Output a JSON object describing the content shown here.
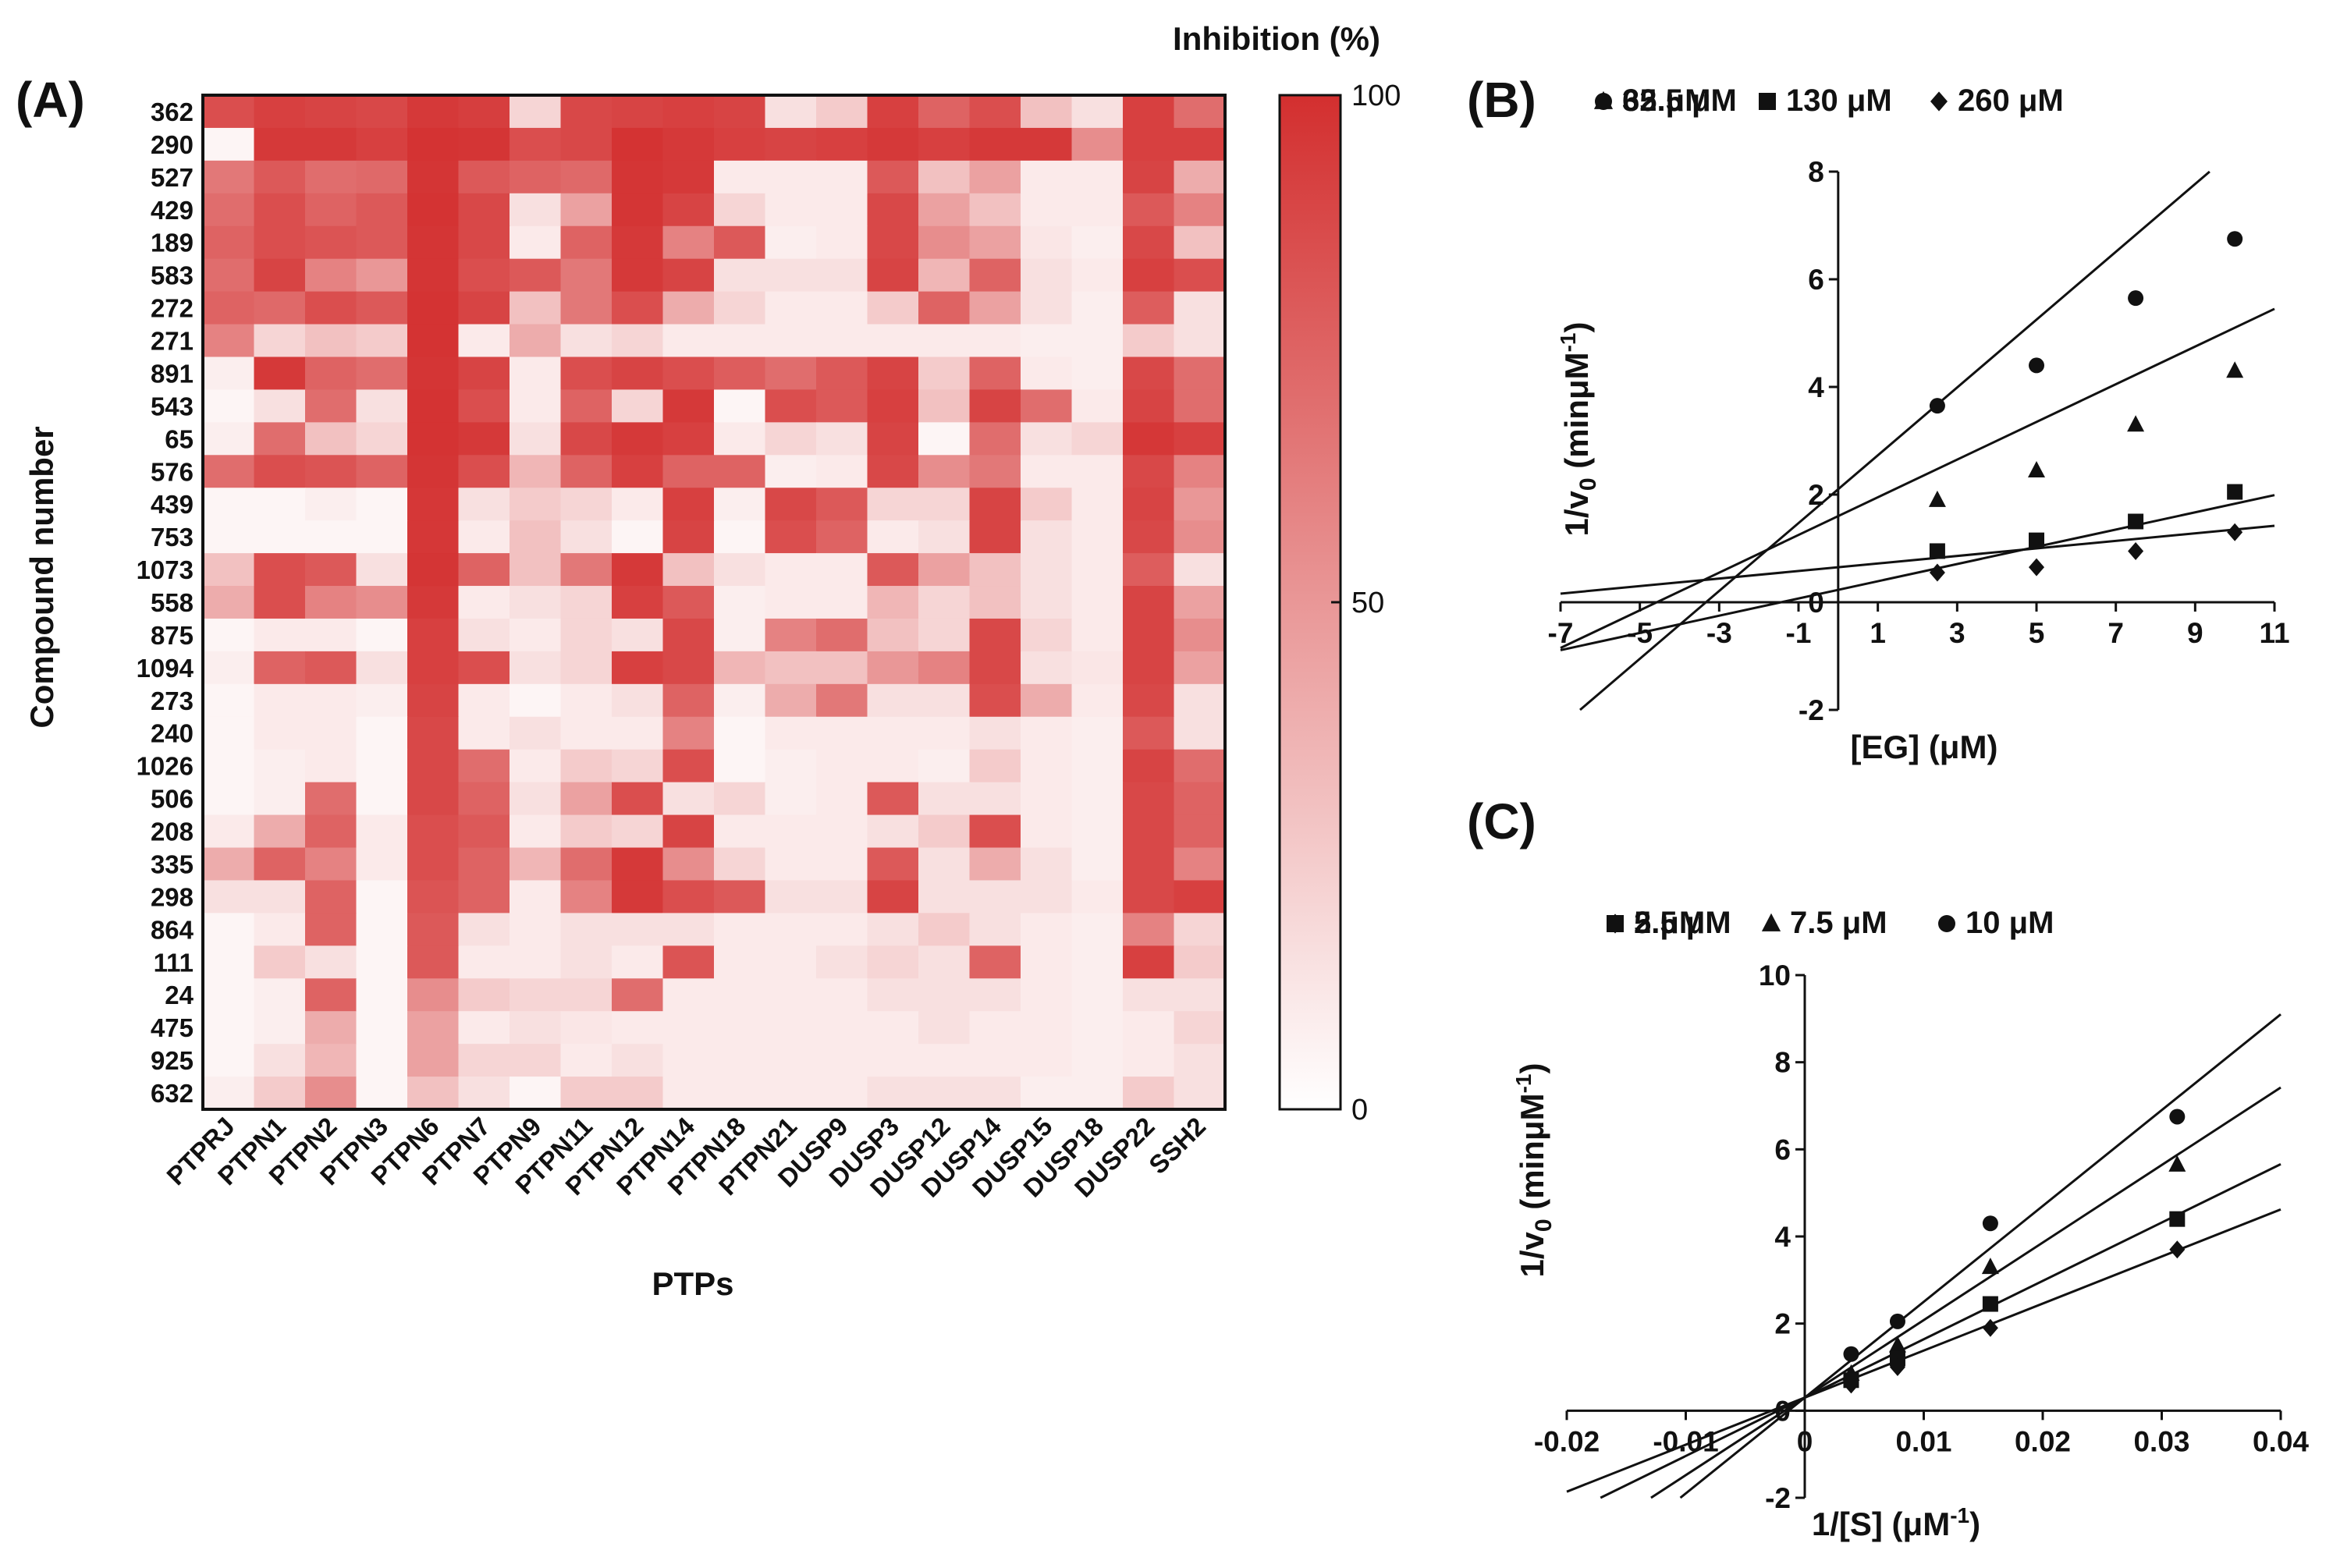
{
  "chart_data": [
    {
      "panel": "(A)",
      "type": "heatmap",
      "xlabel": "PTPs",
      "ylabel": "Compound number",
      "colorbar_title": "Inhibition (%)",
      "colorbar_ticks": [
        "100",
        "50",
        "0"
      ],
      "color_low": "#ffffff",
      "color_high": "#d32f2f",
      "columns": [
        "PTPRJ",
        "PTPN1",
        "PTPN2",
        "PTPN3",
        "PTPN6",
        "PTPN7",
        "PTPN9",
        "PTPN11",
        "PTPN12",
        "PTPN14",
        "PTPN18",
        "PTPN21",
        "DUSP9",
        "DUSP3",
        "DUSP12",
        "DUSP14",
        "DUSP15",
        "DUSP18",
        "DUSP22",
        "SSH2"
      ],
      "rows": [
        "362",
        "290",
        "527",
        "429",
        "189",
        "583",
        "272",
        "271",
        "891",
        "543",
        "65",
        "576",
        "439",
        "753",
        "1073",
        "558",
        "875",
        "1094",
        "273",
        "240",
        "1026",
        "506",
        "208",
        "335",
        "298",
        "864",
        "111",
        "24",
        "475",
        "925",
        "632"
      ],
      "values": [
        [
          85,
          92,
          90,
          88,
          95,
          93,
          20,
          88,
          90,
          92,
          90,
          15,
          25,
          92,
          75,
          85,
          30,
          15,
          92,
          70
        ],
        [
          5,
          95,
          95,
          92,
          98,
          97,
          85,
          88,
          98,
          95,
          92,
          90,
          92,
          95,
          92,
          95,
          95,
          55,
          92,
          92
        ],
        [
          65,
          80,
          70,
          72,
          97,
          80,
          75,
          72,
          97,
          95,
          10,
          10,
          10,
          80,
          30,
          45,
          10,
          10,
          90,
          40
        ],
        [
          70,
          85,
          75,
          80,
          98,
          88,
          15,
          45,
          97,
          90,
          20,
          10,
          10,
          88,
          45,
          30,
          10,
          10,
          80,
          60
        ],
        [
          75,
          85,
          82,
          80,
          97,
          88,
          10,
          75,
          95,
          60,
          80,
          8,
          10,
          88,
          55,
          45,
          12,
          8,
          88,
          30
        ],
        [
          70,
          90,
          60,
          50,
          97,
          85,
          80,
          65,
          95,
          90,
          15,
          15,
          15,
          90,
          35,
          75,
          15,
          10,
          92,
          85
        ],
        [
          75,
          72,
          85,
          80,
          98,
          90,
          30,
          65,
          85,
          40,
          20,
          10,
          10,
          25,
          75,
          45,
          15,
          8,
          78,
          15
        ],
        [
          60,
          20,
          30,
          25,
          98,
          10,
          40,
          15,
          20,
          10,
          10,
          10,
          10,
          10,
          10,
          10,
          8,
          8,
          25,
          15
        ],
        [
          8,
          95,
          75,
          70,
          97,
          90,
          10,
          85,
          90,
          85,
          78,
          70,
          80,
          90,
          25,
          75,
          10,
          8,
          88,
          70
        ],
        [
          5,
          15,
          70,
          15,
          98,
          85,
          10,
          75,
          20,
          95,
          5,
          85,
          80,
          92,
          30,
          90,
          70,
          10,
          90,
          70
        ],
        [
          8,
          70,
          30,
          20,
          98,
          95,
          15,
          88,
          95,
          92,
          10,
          20,
          15,
          90,
          5,
          70,
          15,
          20,
          96,
          92
        ],
        [
          70,
          85,
          82,
          75,
          97,
          85,
          35,
          75,
          92,
          75,
          75,
          8,
          10,
          88,
          55,
          65,
          10,
          10,
          88,
          60
        ],
        [
          5,
          5,
          8,
          5,
          96,
          15,
          25,
          20,
          10,
          92,
          8,
          88,
          80,
          20,
          20,
          90,
          25,
          10,
          90,
          50
        ],
        [
          5,
          5,
          5,
          5,
          96,
          10,
          30,
          15,
          5,
          90,
          5,
          85,
          75,
          10,
          15,
          90,
          15,
          10,
          88,
          55
        ],
        [
          30,
          85,
          80,
          15,
          97,
          75,
          30,
          65,
          95,
          30,
          15,
          10,
          10,
          80,
          45,
          30,
          15,
          10,
          78,
          15
        ],
        [
          40,
          85,
          60,
          55,
          95,
          10,
          15,
          20,
          92,
          80,
          8,
          10,
          10,
          35,
          20,
          30,
          15,
          10,
          90,
          45
        ],
        [
          5,
          10,
          10,
          5,
          92,
          15,
          10,
          20,
          15,
          88,
          8,
          60,
          70,
          30,
          20,
          88,
          20,
          10,
          90,
          55
        ],
        [
          8,
          75,
          80,
          15,
          92,
          85,
          15,
          20,
          92,
          88,
          35,
          30,
          30,
          50,
          60,
          88,
          15,
          12,
          90,
          45
        ],
        [
          5,
          10,
          10,
          8,
          90,
          10,
          5,
          10,
          15,
          75,
          8,
          40,
          65,
          15,
          15,
          85,
          40,
          10,
          88,
          15
        ],
        [
          5,
          10,
          10,
          5,
          88,
          10,
          15,
          10,
          10,
          60,
          5,
          10,
          10,
          10,
          10,
          15,
          10,
          8,
          80,
          15
        ],
        [
          5,
          8,
          10,
          5,
          88,
          70,
          10,
          25,
          20,
          85,
          5,
          8,
          10,
          10,
          8,
          25,
          10,
          8,
          90,
          70
        ],
        [
          5,
          8,
          70,
          5,
          88,
          75,
          15,
          45,
          85,
          15,
          20,
          8,
          10,
          80,
          15,
          15,
          10,
          8,
          88,
          75
        ],
        [
          10,
          40,
          75,
          10,
          85,
          80,
          10,
          25,
          20,
          90,
          10,
          10,
          10,
          15,
          25,
          85,
          10,
          8,
          88,
          75
        ],
        [
          40,
          75,
          60,
          10,
          85,
          75,
          35,
          70,
          95,
          55,
          20,
          10,
          10,
          80,
          15,
          40,
          15,
          8,
          88,
          60
        ],
        [
          15,
          15,
          75,
          5,
          82,
          75,
          10,
          60,
          95,
          85,
          80,
          15,
          15,
          90,
          15,
          15,
          15,
          10,
          88,
          92
        ],
        [
          5,
          10,
          75,
          5,
          80,
          15,
          10,
          15,
          15,
          15,
          10,
          10,
          10,
          15,
          25,
          15,
          10,
          8,
          60,
          20
        ],
        [
          5,
          25,
          15,
          5,
          80,
          10,
          10,
          15,
          10,
          82,
          10,
          10,
          15,
          20,
          15,
          75,
          10,
          8,
          92,
          25
        ],
        [
          5,
          8,
          75,
          5,
          55,
          25,
          20,
          20,
          70,
          10,
          10,
          10,
          10,
          15,
          15,
          15,
          10,
          8,
          15,
          15
        ],
        [
          5,
          8,
          40,
          5,
          45,
          10,
          15,
          12,
          10,
          10,
          10,
          10,
          10,
          10,
          15,
          10,
          10,
          8,
          10,
          20
        ],
        [
          5,
          15,
          35,
          5,
          45,
          20,
          20,
          10,
          15,
          10,
          10,
          10,
          10,
          10,
          10,
          10,
          10,
          8,
          10,
          15
        ],
        [
          8,
          25,
          55,
          5,
          30,
          15,
          5,
          25,
          25,
          10,
          10,
          10,
          10,
          15,
          15,
          15,
          8,
          8,
          25,
          15
        ]
      ]
    },
    {
      "panel": "(B)",
      "type": "scatter",
      "xlabel": "[EG] (μM)",
      "ylabel_main": "1/v",
      "ylabel_sub": "0",
      "ylabel_rest": " (minμM",
      "ylabel_sup": "-1",
      "ylabel_end": ")",
      "xlim": [
        -7,
        11
      ],
      "ylim": [
        -2,
        8
      ],
      "xticks": [
        -7,
        -5,
        -3,
        -1,
        1,
        3,
        5,
        7,
        9,
        11
      ],
      "yticks": [
        -2,
        0,
        2,
        4,
        6,
        8
      ],
      "series": [
        {
          "name": "260 μM",
          "marker": "diamond",
          "x": [
            2.5,
            5,
            7.5,
            10
          ],
          "y": [
            0.55,
            0.65,
            0.95,
            1.3
          ],
          "fit": {
            "slope": 0.07,
            "intercept": 0.65
          }
        },
        {
          "name": "130 μM",
          "marker": "square",
          "x": [
            2.5,
            5,
            7.5,
            10
          ],
          "y": [
            0.95,
            1.15,
            1.5,
            2.05
          ],
          "fit": {
            "slope": 0.16,
            "intercept": 0.23
          }
        },
        {
          "name": "65 μM",
          "marker": "triangle",
          "x": [
            2.5,
            5,
            7.5,
            10
          ],
          "y": [
            1.9,
            2.45,
            3.3,
            4.3
          ],
          "fit": {
            "slope": 0.35,
            "intercept": 1.6
          }
        },
        {
          "name": "32.5 μM",
          "marker": "circle",
          "x": [
            2.5,
            5,
            7.5,
            10
          ],
          "y": [
            3.65,
            4.4,
            5.65,
            6.75
          ],
          "fit": {
            "slope": 0.63,
            "intercept": 2.1
          }
        }
      ]
    },
    {
      "panel": "(C)",
      "type": "scatter",
      "xlabel_main": "1/[S] (μM",
      "xlabel_sup": "-1",
      "xlabel_end": ")",
      "ylabel_main": "1/v",
      "ylabel_sub": "0",
      "ylabel_rest": " (minμM",
      "ylabel_sup": "-1",
      "ylabel_end": ")",
      "xlim": [
        -0.02,
        0.04
      ],
      "ylim": [
        -2,
        10
      ],
      "xticks": [
        -0.02,
        -0.01,
        0,
        0.01,
        0.02,
        0.03,
        0.04
      ],
      "xtick_labels": [
        "-0.02",
        "-0.01",
        "0",
        "0.01",
        "0.02",
        "0.03",
        "0.04"
      ],
      "yticks": [
        -2,
        0,
        2,
        4,
        6,
        8,
        10
      ],
      "series": [
        {
          "name": "10 μM",
          "marker": "circle",
          "x": [
            0.0039,
            0.0078,
            0.0156,
            0.0313
          ],
          "y": [
            1.3,
            2.05,
            4.3,
            6.75
          ],
          "fit": {
            "slope": 220,
            "intercept": 0.3
          }
        },
        {
          "name": "7.5 μM",
          "marker": "triangle",
          "x": [
            0.0039,
            0.0078,
            0.0156,
            0.0313
          ],
          "y": [
            0.85,
            1.5,
            3.3,
            5.65
          ],
          "fit": {
            "slope": 178,
            "intercept": 0.3
          }
        },
        {
          "name": "5 μM",
          "marker": "square",
          "x": [
            0.0039,
            0.0078,
            0.0156,
            0.0313
          ],
          "y": [
            0.7,
            1.2,
            2.45,
            4.4
          ],
          "fit": {
            "slope": 134,
            "intercept": 0.3
          }
        },
        {
          "name": "2.5 μM",
          "marker": "diamond",
          "x": [
            0.0039,
            0.0078,
            0.0156,
            0.0313
          ],
          "y": [
            0.6,
            1.0,
            1.9,
            3.7
          ],
          "fit": {
            "slope": 108,
            "intercept": 0.3
          }
        }
      ]
    }
  ]
}
